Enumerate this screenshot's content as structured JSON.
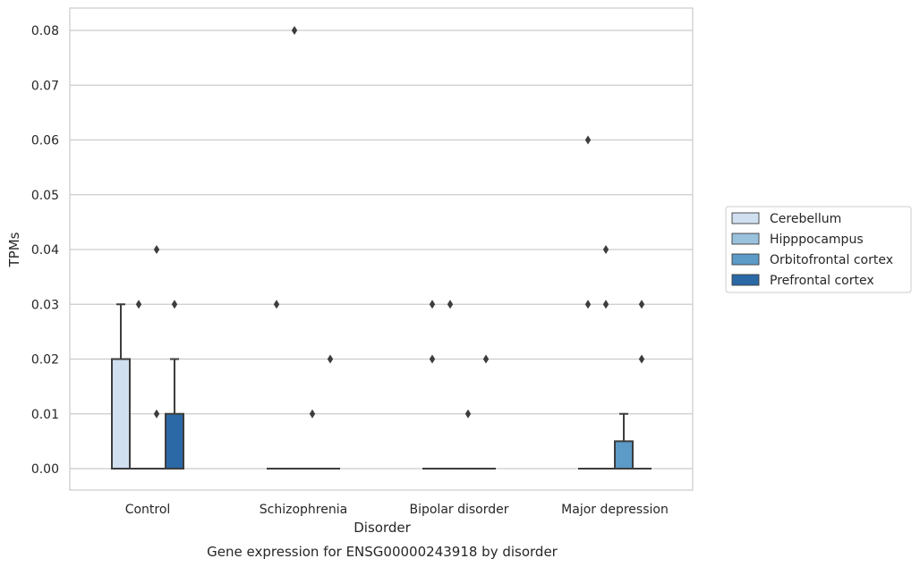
{
  "chart_data": {
    "type": "box",
    "title": "",
    "caption": "Gene expression for ENSG00000243918 by disorder",
    "xlabel": "Disorder",
    "ylabel": "TPMs",
    "ylim": [
      -0.0039,
      0.0839
    ],
    "yticks": [
      "0.00",
      "0.01",
      "0.02",
      "0.03",
      "0.04",
      "0.05",
      "0.06",
      "0.07",
      "0.08"
    ],
    "grid": true,
    "legend_position": "right",
    "categories": [
      "Control",
      "Schizophrenia",
      "Bipolar disorder",
      "Major depression"
    ],
    "series": [
      {
        "name": "Cerebellum",
        "color": "#d1e0f0",
        "boxes": [
          {
            "q1": 0.0,
            "median": 0.0,
            "q3": 0.02,
            "whislo": 0.0,
            "whishi": 0.03,
            "outliers": []
          },
          {
            "q1": 0.0,
            "median": 0.0,
            "q3": 0.0,
            "whislo": 0.0,
            "whishi": 0.0,
            "outliers": [
              0.03
            ]
          },
          {
            "q1": 0.0,
            "median": 0.0,
            "q3": 0.0,
            "whislo": 0.0,
            "whishi": 0.0,
            "outliers": [
              0.02,
              0.03
            ]
          },
          {
            "q1": 0.0,
            "median": 0.0,
            "q3": 0.0,
            "whislo": 0.0,
            "whishi": 0.0,
            "outliers": [
              0.03,
              0.06
            ]
          }
        ]
      },
      {
        "name": "Hipppocampus",
        "color": "#9ac2dd",
        "boxes": [
          {
            "q1": 0.0,
            "median": 0.0,
            "q3": 0.0,
            "whislo": 0.0,
            "whishi": 0.0,
            "outliers": [
              0.03
            ]
          },
          {
            "q1": 0.0,
            "median": 0.0,
            "q3": 0.0,
            "whislo": 0.0,
            "whishi": 0.0,
            "outliers": [
              0.08
            ]
          },
          {
            "q1": 0.0,
            "median": 0.0,
            "q3": 0.0,
            "whislo": 0.0,
            "whishi": 0.0,
            "outliers": [
              0.03
            ]
          },
          {
            "q1": 0.0,
            "median": 0.0,
            "q3": 0.0,
            "whislo": 0.0,
            "whishi": 0.0,
            "outliers": [
              0.03,
              0.04
            ]
          }
        ]
      },
      {
        "name": "Orbitofrontal cortex",
        "color": "#5c9ac7",
        "boxes": [
          {
            "q1": 0.0,
            "median": 0.0,
            "q3": 0.0,
            "whislo": 0.0,
            "whishi": 0.0,
            "outliers": [
              0.01,
              0.04
            ]
          },
          {
            "q1": 0.0,
            "median": 0.0,
            "q3": 0.0,
            "whislo": 0.0,
            "whishi": 0.0,
            "outliers": [
              0.01
            ]
          },
          {
            "q1": 0.0,
            "median": 0.0,
            "q3": 0.0,
            "whislo": 0.0,
            "whishi": 0.0,
            "outliers": [
              0.01
            ]
          },
          {
            "q1": 0.0,
            "median": 0.0,
            "q3": 0.005,
            "whislo": 0.0,
            "whishi": 0.01,
            "outliers": []
          }
        ]
      },
      {
        "name": "Prefrontal cortex",
        "color": "#2b68a6",
        "boxes": [
          {
            "q1": 0.0,
            "median": 0.0,
            "q3": 0.01,
            "whislo": 0.0,
            "whishi": 0.02,
            "outliers": [
              0.03
            ]
          },
          {
            "q1": 0.0,
            "median": 0.0,
            "q3": 0.0,
            "whislo": 0.0,
            "whishi": 0.0,
            "outliers": [
              0.02
            ]
          },
          {
            "q1": 0.0,
            "median": 0.0,
            "q3": 0.0,
            "whislo": 0.0,
            "whishi": 0.0,
            "outliers": [
              0.02
            ]
          },
          {
            "q1": 0.0,
            "median": 0.0,
            "q3": 0.0,
            "whislo": 0.0,
            "whishi": 0.0,
            "outliers": [
              0.02,
              0.03
            ]
          }
        ]
      }
    ]
  }
}
